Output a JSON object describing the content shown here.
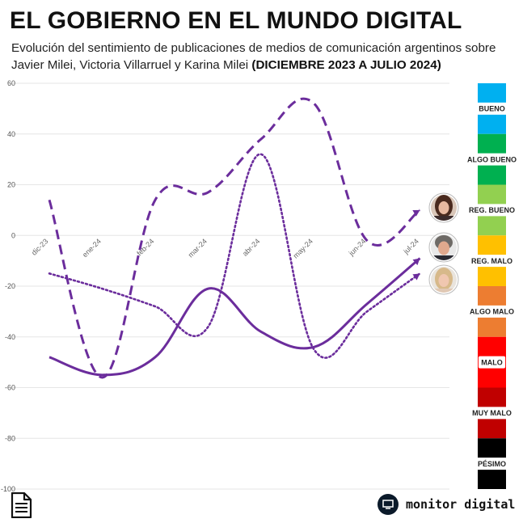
{
  "header": {
    "title": "EL GOBIERNO EN EL MUNDO DIGITAL",
    "subtitle": "Evolución del sentimiento de publicaciones de medios de comunicación argentinos sobre Javier Milei, Victoria Villarruel y Karina Milei",
    "subtitle_bold": "(DICIEMBRE 2023 A JULIO 2024)"
  },
  "chart_data": {
    "type": "line",
    "categories": [
      "dic-23",
      "ene-24",
      "feb-24",
      "mar-24",
      "abr-24",
      "may-24",
      "jun-24",
      "jul-24"
    ],
    "ylim": [
      -100,
      60
    ],
    "y_ticks": [
      60,
      40,
      20,
      0,
      -20,
      -40,
      -60,
      -80,
      -100
    ],
    "grid": true,
    "color": "#6b2d9c",
    "series": [
      {
        "style": "dashed",
        "values": [
          14,
          -56,
          14,
          17,
          38,
          52,
          -2,
          10
        ],
        "avatar": "woman-dark-hair"
      },
      {
        "style": "solid",
        "values": [
          -48,
          -55,
          -48,
          -21,
          -38,
          -44,
          -27,
          -9
        ],
        "avatar": "man-gray-hair"
      },
      {
        "style": "dotted",
        "values": [
          -15,
          -21,
          -28,
          -36,
          32,
          -45,
          -30,
          -15
        ],
        "avatar": "woman-blonde-hair"
      }
    ],
    "sentiment_scale": [
      {
        "label": "BUENO",
        "color": "#00b0f0"
      },
      {
        "label": "ALGO BUENO",
        "color": "#00b050"
      },
      {
        "label": "REG. BUENO",
        "color": "#92d050"
      },
      {
        "label": "REG. MALO",
        "color": "#ffc000"
      },
      {
        "label": "ALGO MALO",
        "color": "#ed7d31"
      },
      {
        "label": "MALO",
        "color": "#ff0000"
      },
      {
        "label": "MUY MALO",
        "color": "#c00000"
      },
      {
        "label": "PÉSIMO",
        "color": "#000000"
      }
    ]
  },
  "footer": {
    "brand": "monitor digital",
    "doc_icon": "document-icon",
    "logo_icon": "monitor-icon"
  }
}
